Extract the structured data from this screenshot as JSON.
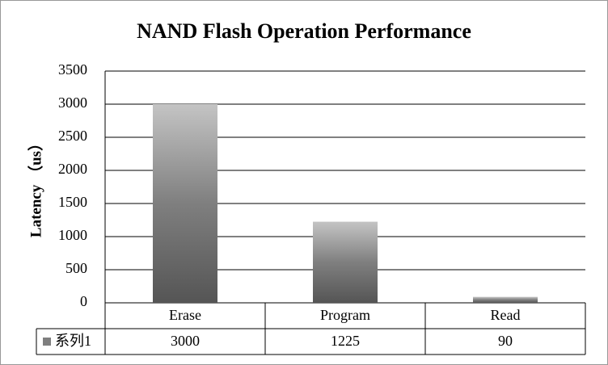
{
  "chart_data": {
    "type": "bar",
    "title": "NAND Flash Operation Performance",
    "y_label": "Latency （us）",
    "categories": [
      "Erase",
      "Program",
      "Read"
    ],
    "series": [
      {
        "name": "系列1",
        "color": "#7f7f7f",
        "values": [
          3000,
          1225,
          90
        ]
      }
    ],
    "ylim": [
      0,
      3500
    ],
    "yticks": [
      0,
      500,
      1000,
      1500,
      2000,
      2500,
      3000,
      3500
    ],
    "grid": true,
    "data_table": true
  }
}
